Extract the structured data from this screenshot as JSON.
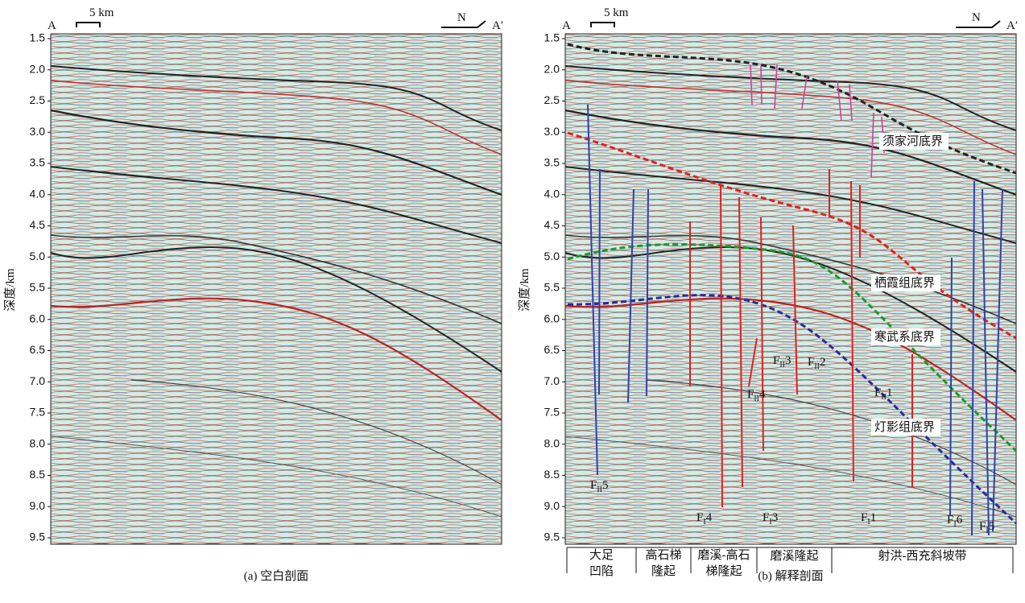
{
  "panels": [
    {
      "caption": "(a) 空白剖面",
      "y_label": "深度/km",
      "left_label": "A",
      "right_label": "A′",
      "scale_label": "5 km",
      "north_label": "N"
    },
    {
      "caption": "(b) 解释剖面",
      "y_label": "深度/km",
      "left_label": "A",
      "right_label": "A′",
      "scale_label": "5 km",
      "north_label": "N"
    }
  ],
  "depth_ticks": [
    "1.5",
    "2.0",
    "2.5",
    "3.0",
    "3.5",
    "4.0",
    "4.5",
    "5.0",
    "5.5",
    "6.0",
    "6.5",
    "7.0",
    "7.5",
    "8.0",
    "8.5",
    "9.0",
    "9.5"
  ],
  "horizons": [
    "须家河底界",
    "栖霞组底界",
    "寒武系底界",
    "灯影组底界"
  ],
  "faults": [
    {
      "main": "F",
      "sub": "II",
      "num": "5"
    },
    {
      "main": "F",
      "sub": "I",
      "num": "4"
    },
    {
      "main": "F",
      "sub": "I",
      "num": "3"
    },
    {
      "main": "F",
      "sub": "II",
      "num": "3"
    },
    {
      "main": "F",
      "sub": "II",
      "num": "2"
    },
    {
      "main": "F",
      "sub": "II",
      "num": "4"
    },
    {
      "main": "F",
      "sub": "I",
      "num": "1"
    },
    {
      "main": "F",
      "sub": "II",
      "num": "1"
    },
    {
      "main": "F",
      "sub": "I",
      "num": "6"
    },
    {
      "main": "F",
      "sub": "I",
      "num": "5"
    }
  ],
  "zones": [
    [
      "大足",
      "凹陷"
    ],
    [
      "高石梯",
      "隆起"
    ],
    [
      "磨溪-高石",
      "梯隆起"
    ],
    [
      "磨溪隆起"
    ],
    [
      "射洪-西充斜坡带"
    ]
  ]
}
